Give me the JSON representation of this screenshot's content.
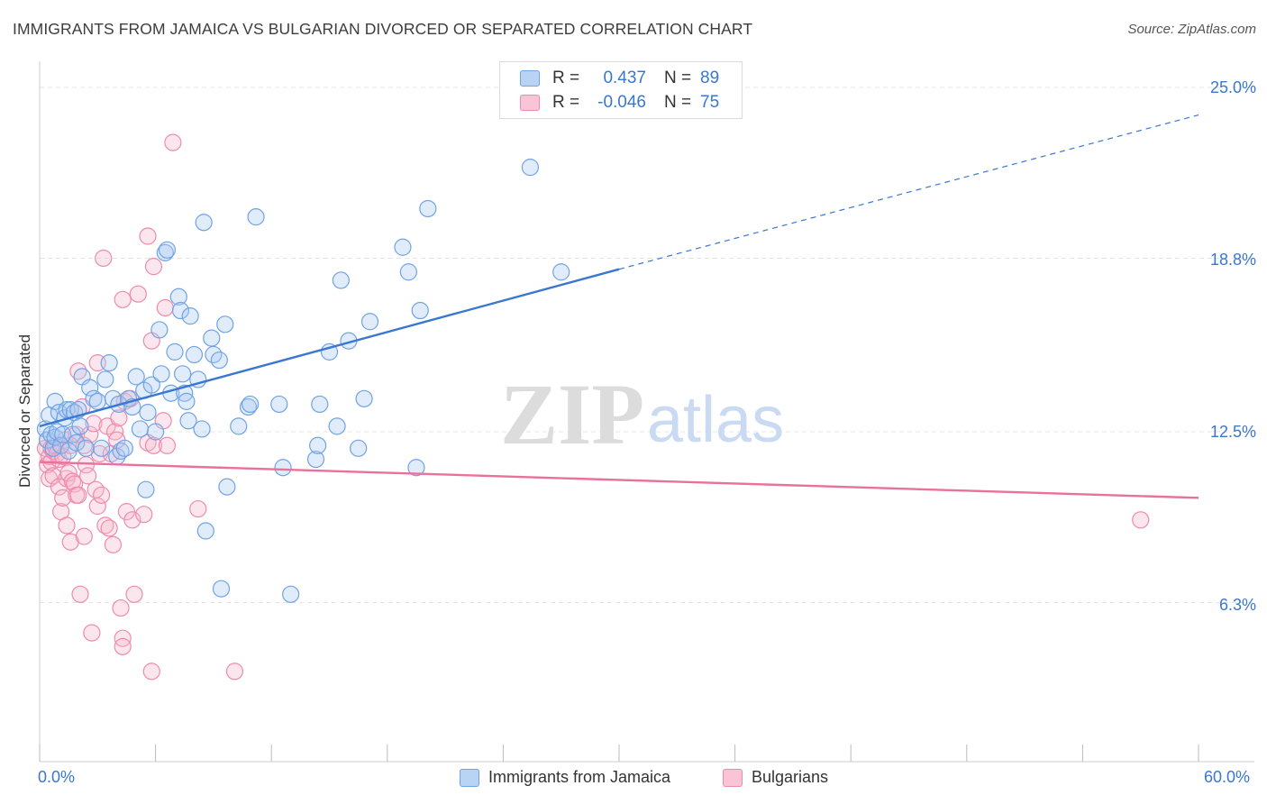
{
  "header": {
    "title": "IMMIGRANTS FROM JAMAICA VS BULGARIAN DIVORCED OR SEPARATED CORRELATION CHART",
    "source": "Source: ZipAtlas.com"
  },
  "watermark": {
    "zip": "ZIP",
    "atlas": "atlas"
  },
  "legend": {
    "r_label": "R =",
    "n_label": "N =",
    "rows": [
      {
        "r": "0.437",
        "n": "89"
      },
      {
        "r": "-0.046",
        "n": "75"
      }
    ]
  },
  "axes": {
    "x_min_label": "0.0%",
    "x_max_label": "60.0%",
    "y_labels": [
      "25.0%",
      "18.8%",
      "12.5%",
      "6.3%"
    ]
  },
  "chart_data": {
    "type": "scatter",
    "title": "IMMIGRANTS FROM JAMAICA VS BULGARIAN DIVORCED OR SEPARATED CORRELATION CHART",
    "xlabel": "",
    "ylabel": "Divorced or Separated",
    "xlim": [
      0,
      60
    ],
    "ylim": [
      0,
      25
    ],
    "yticks": [
      6.3,
      12.5,
      18.8,
      25.0
    ],
    "grid": true,
    "colors": {
      "jamaica": "#6fa3e6",
      "bulgarians": "#f08aad",
      "jamaica_line": "#3a77d0",
      "bulgarians_line": "#e8729a"
    },
    "series": [
      {
        "name": "Immigrants from Jamaica",
        "r": 0.437,
        "n": 89,
        "trend": {
          "x0": 0,
          "y0": 12.7,
          "x1": 30,
          "y1": 18.4,
          "dash_to_x": 60,
          "dash_to_y": 24.0
        },
        "points": [
          [
            0.3,
            12.6
          ],
          [
            0.4,
            12.2
          ],
          [
            0.5,
            13.1
          ],
          [
            0.6,
            12.4
          ],
          [
            0.7,
            11.9
          ],
          [
            0.8,
            12.3
          ],
          [
            0.8,
            13.6
          ],
          [
            0.9,
            12.5
          ],
          [
            1.0,
            13.2
          ],
          [
            1.1,
            12.0
          ],
          [
            1.2,
            12.4
          ],
          [
            1.3,
            13.0
          ],
          [
            1.4,
            13.3
          ],
          [
            1.5,
            11.8
          ],
          [
            1.6,
            13.3
          ],
          [
            1.7,
            12.4
          ],
          [
            1.8,
            13.2
          ],
          [
            1.9,
            12.1
          ],
          [
            2.0,
            13.3
          ],
          [
            2.1,
            12.7
          ],
          [
            2.2,
            14.5
          ],
          [
            2.4,
            11.9
          ],
          [
            2.6,
            14.1
          ],
          [
            2.8,
            13.7
          ],
          [
            3.0,
            13.6
          ],
          [
            3.2,
            11.9
          ],
          [
            3.4,
            14.4
          ],
          [
            3.6,
            15.0
          ],
          [
            3.8,
            13.7
          ],
          [
            4.0,
            11.6
          ],
          [
            4.1,
            13.5
          ],
          [
            4.2,
            11.8
          ],
          [
            4.4,
            11.9
          ],
          [
            4.6,
            13.7
          ],
          [
            4.8,
            13.4
          ],
          [
            5.0,
            14.5
          ],
          [
            5.2,
            12.6
          ],
          [
            5.4,
            14.0
          ],
          [
            5.5,
            10.4
          ],
          [
            5.6,
            13.2
          ],
          [
            5.8,
            14.2
          ],
          [
            6.0,
            12.5
          ],
          [
            6.2,
            16.2
          ],
          [
            6.3,
            14.6
          ],
          [
            6.5,
            19.0
          ],
          [
            6.6,
            19.1
          ],
          [
            6.8,
            13.9
          ],
          [
            7.0,
            15.4
          ],
          [
            7.2,
            17.4
          ],
          [
            7.3,
            16.9
          ],
          [
            7.4,
            14.6
          ],
          [
            7.5,
            13.9
          ],
          [
            7.6,
            13.6
          ],
          [
            7.7,
            12.9
          ],
          [
            7.8,
            16.7
          ],
          [
            8.0,
            15.3
          ],
          [
            8.2,
            14.4
          ],
          [
            8.4,
            12.6
          ],
          [
            8.5,
            20.1
          ],
          [
            8.6,
            8.9
          ],
          [
            8.9,
            15.9
          ],
          [
            9.0,
            15.3
          ],
          [
            9.3,
            15.1
          ],
          [
            9.4,
            6.8
          ],
          [
            9.6,
            16.4
          ],
          [
            9.7,
            10.5
          ],
          [
            10.3,
            12.7
          ],
          [
            10.8,
            13.4
          ],
          [
            10.9,
            13.5
          ],
          [
            11.2,
            20.3
          ],
          [
            12.4,
            13.5
          ],
          [
            12.6,
            11.2
          ],
          [
            13.0,
            6.6
          ],
          [
            14.3,
            11.5
          ],
          [
            14.4,
            12.0
          ],
          [
            14.5,
            13.5
          ],
          [
            15.0,
            15.4
          ],
          [
            15.4,
            12.7
          ],
          [
            15.6,
            18.0
          ],
          [
            16.0,
            15.8
          ],
          [
            16.5,
            11.9
          ],
          [
            16.8,
            13.7
          ],
          [
            17.1,
            16.5
          ],
          [
            18.8,
            19.2
          ],
          [
            19.1,
            18.3
          ],
          [
            19.5,
            11.2
          ],
          [
            19.7,
            16.9
          ],
          [
            20.1,
            20.6
          ],
          [
            25.4,
            22.1
          ],
          [
            27.0,
            18.3
          ]
        ]
      },
      {
        "name": "Bulgarians",
        "r": -0.046,
        "n": 75,
        "trend": {
          "x0": 0,
          "y0": 11.4,
          "x1": 60,
          "y1": 10.1
        },
        "points": [
          [
            0.3,
            11.9
          ],
          [
            0.4,
            11.3
          ],
          [
            0.4,
            12.2
          ],
          [
            0.5,
            11.6
          ],
          [
            0.5,
            10.8
          ],
          [
            0.6,
            11.9
          ],
          [
            0.6,
            11.4
          ],
          [
            0.7,
            10.9
          ],
          [
            0.7,
            11.8
          ],
          [
            0.8,
            12.0
          ],
          [
            0.9,
            11.7
          ],
          [
            1.0,
            10.5
          ],
          [
            1.0,
            11.5
          ],
          [
            1.1,
            9.6
          ],
          [
            1.2,
            10.1
          ],
          [
            1.2,
            11.6
          ],
          [
            1.3,
            12.2
          ],
          [
            1.4,
            10.8
          ],
          [
            1.4,
            9.1
          ],
          [
            1.5,
            11.0
          ],
          [
            1.6,
            8.5
          ],
          [
            1.6,
            12.0
          ],
          [
            1.7,
            10.7
          ],
          [
            1.8,
            10.6
          ],
          [
            1.9,
            10.2
          ],
          [
            1.9,
            12.4
          ],
          [
            2.0,
            14.7
          ],
          [
            2.0,
            10.2
          ],
          [
            2.1,
            6.6
          ],
          [
            2.2,
            13.4
          ],
          [
            2.3,
            12.0
          ],
          [
            2.3,
            8.7
          ],
          [
            2.4,
            11.3
          ],
          [
            2.5,
            10.9
          ],
          [
            2.6,
            12.4
          ],
          [
            2.7,
            5.2
          ],
          [
            2.8,
            12.8
          ],
          [
            2.9,
            10.4
          ],
          [
            3.0,
            9.8
          ],
          [
            3.0,
            15.0
          ],
          [
            3.1,
            11.7
          ],
          [
            3.2,
            10.2
          ],
          [
            3.3,
            18.8
          ],
          [
            3.4,
            9.1
          ],
          [
            3.5,
            12.7
          ],
          [
            3.6,
            9.0
          ],
          [
            3.7,
            11.7
          ],
          [
            3.8,
            8.4
          ],
          [
            3.9,
            12.5
          ],
          [
            4.0,
            12.2
          ],
          [
            4.1,
            13.0
          ],
          [
            4.2,
            6.1
          ],
          [
            4.3,
            17.3
          ],
          [
            4.3,
            5.0
          ],
          [
            4.3,
            4.7
          ],
          [
            4.4,
            13.6
          ],
          [
            4.5,
            9.6
          ],
          [
            4.7,
            13.7
          ],
          [
            4.8,
            9.3
          ],
          [
            4.9,
            6.6
          ],
          [
            5.1,
            17.5
          ],
          [
            5.4,
            9.5
          ],
          [
            5.6,
            12.1
          ],
          [
            5.8,
            3.8
          ],
          [
            5.8,
            15.8
          ],
          [
            5.9,
            12.0
          ],
          [
            5.9,
            18.5
          ],
          [
            6.4,
            12.9
          ],
          [
            6.5,
            17.0
          ],
          [
            6.6,
            12.0
          ],
          [
            5.6,
            19.6
          ],
          [
            6.9,
            23.0
          ],
          [
            8.2,
            9.7
          ],
          [
            10.1,
            3.8
          ],
          [
            57.0,
            9.3
          ]
        ]
      }
    ]
  }
}
